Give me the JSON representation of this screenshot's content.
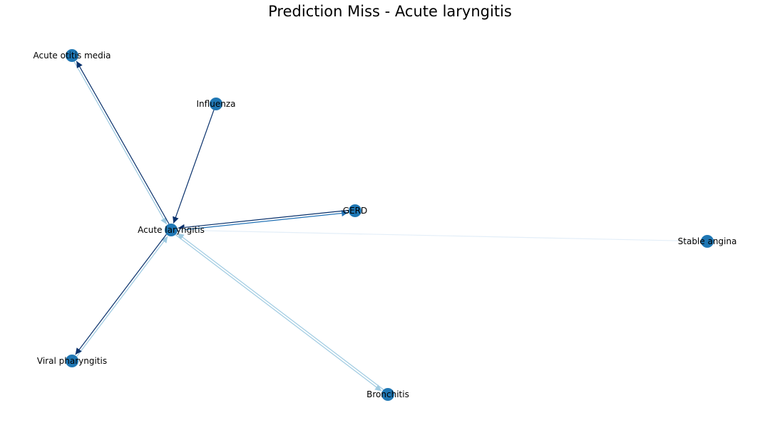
{
  "title": "Prediction Miss - Acute laryngitis",
  "colors": {
    "node_fill": "#1f77b4",
    "edge_dark": "#08306b",
    "edge_mid": "#2171b5",
    "edge_light": "#9ecae1",
    "edge_faint": "#e3eef8"
  },
  "nodes": [
    {
      "id": "acute_laryngitis",
      "label": "Acute laryngitis"
    },
    {
      "id": "acute_otitis_media",
      "label": "Acute otitis media"
    },
    {
      "id": "influenza",
      "label": "Influenza"
    },
    {
      "id": "gerd",
      "label": "GERD"
    },
    {
      "id": "stable_angina",
      "label": "Stable angina"
    },
    {
      "id": "viral_pharyngitis",
      "label": "Viral pharyngitis"
    },
    {
      "id": "bronchitis",
      "label": "Bronchitis"
    }
  ],
  "edges": [
    {
      "from": "acute_otitis_media",
      "to": "acute_laryngitis",
      "color": "edge_light"
    },
    {
      "from": "acute_laryngitis",
      "to": "acute_otitis_media",
      "color": "edge_dark"
    },
    {
      "from": "influenza",
      "to": "acute_laryngitis",
      "color": "edge_dark"
    },
    {
      "from": "acute_laryngitis",
      "to": "gerd",
      "color": "edge_mid"
    },
    {
      "from": "gerd",
      "to": "acute_laryngitis",
      "color": "edge_dark"
    },
    {
      "from": "stable_angina",
      "to": "acute_laryngitis",
      "color": "edge_faint"
    },
    {
      "from": "viral_pharyngitis",
      "to": "acute_laryngitis",
      "color": "edge_light"
    },
    {
      "from": "acute_laryngitis",
      "to": "viral_pharyngitis",
      "color": "edge_dark"
    },
    {
      "from": "bronchitis",
      "to": "acute_laryngitis",
      "color": "edge_light"
    },
    {
      "from": "acute_laryngitis",
      "to": "bronchitis",
      "color": "edge_light"
    }
  ]
}
